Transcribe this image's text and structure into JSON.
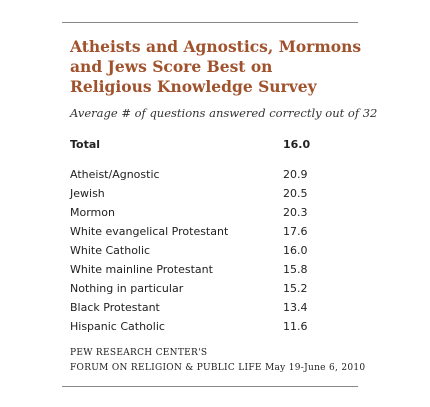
{
  "header": {
    "title_lines": [
      "Atheists and Agnostics, Mormons",
      "and Jews Score Best on",
      "Religious Knowledge Survey"
    ],
    "subtitle": "Average # of questions answered correctly out of 32"
  },
  "table": {
    "total": [
      "Total",
      "16.0"
    ],
    "rows": [
      [
        "Atheist/Agnostic",
        "20.9"
      ],
      [
        "Jewish",
        "20.5"
      ],
      [
        "Mormon",
        "20.3"
      ],
      [
        "White evangelical Protestant",
        "17.6"
      ],
      [
        "White Catholic",
        "16.0"
      ],
      [
        "White mainline Protestant",
        "15.8"
      ],
      [
        "Nothing in particular",
        "15.2"
      ],
      [
        "Black Protestant",
        "13.4"
      ],
      [
        "Hispanic Catholic",
        "11.6"
      ]
    ]
  },
  "footer": {
    "lines": [
      "PEW RESEARCH CENTER'S",
      "FORUM ON RELIGION & PUBLIC LIFE May 19-June 6, 2010"
    ]
  }
}
